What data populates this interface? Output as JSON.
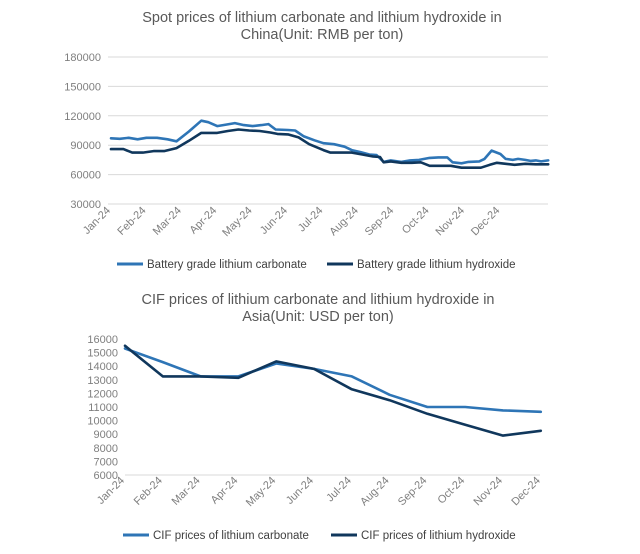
{
  "chart_data": [
    {
      "type": "line",
      "title": "Spot prices of lithium carbonate and lithium hydroxide in China(Unit: RMB per ton)",
      "title_lines": [
        "Spot prices of lithium carbonate and lithium hydroxide in",
        "China(Unit: RMB per ton)"
      ],
      "x_labels": [
        "Jan-24",
        "Feb-24",
        "Mar-24",
        "Apr-24",
        "May-24",
        "Jun-24",
        "Jul-24",
        "Aug-24",
        "Sep-24",
        "Oct-24",
        "Nov-24",
        "Dec-24"
      ],
      "ylim": [
        30000,
        180000
      ],
      "yticks": [
        30000,
        60000,
        90000,
        120000,
        150000,
        180000
      ],
      "grid": true,
      "legend_position": "bottom",
      "series": [
        {
          "name": "Battery grade lithium carbonate",
          "color": "#2e75b6",
          "points": [
            [
              0,
              97000
            ],
            [
              0.25,
              96500
            ],
            [
              0.5,
              97500
            ],
            [
              0.75,
              96000
            ],
            [
              1,
              97500
            ],
            [
              1.3,
              97500
            ],
            [
              1.6,
              96000
            ],
            [
              1.85,
              94000
            ],
            [
              2.2,
              104000
            ],
            [
              2.55,
              115000
            ],
            [
              2.75,
              113500
            ],
            [
              3,
              109500
            ],
            [
              3.25,
              111000
            ],
            [
              3.5,
              112500
            ],
            [
              3.75,
              110500
            ],
            [
              4,
              109500
            ],
            [
              4.25,
              110500
            ],
            [
              4.45,
              111500
            ],
            [
              4.65,
              106000
            ],
            [
              5,
              105500
            ],
            [
              5.2,
              105000
            ],
            [
              5.45,
              99000
            ],
            [
              5.75,
              95000
            ],
            [
              6,
              92000
            ],
            [
              6.3,
              91000
            ],
            [
              6.6,
              88500
            ],
            [
              6.8,
              85000
            ],
            [
              7.05,
              83000
            ],
            [
              7.3,
              80500
            ],
            [
              7.5,
              80000
            ],
            [
              7.7,
              73000
            ],
            [
              7.9,
              74500
            ],
            [
              8.2,
              73000
            ],
            [
              8.45,
              74500
            ],
            [
              8.7,
              75000
            ],
            [
              9,
              77000
            ],
            [
              9.25,
              77500
            ],
            [
              9.5,
              77500
            ],
            [
              9.65,
              72500
            ],
            [
              9.9,
              71500
            ],
            [
              10.1,
              73000
            ],
            [
              10.4,
              73500
            ],
            [
              10.55,
              76000
            ],
            [
              10.75,
              84500
            ],
            [
              11,
              81000
            ],
            [
              11.15,
              76000
            ],
            [
              11.35,
              75000
            ],
            [
              11.5,
              76000
            ],
            [
              11.7,
              75000
            ],
            [
              11.85,
              74000
            ],
            [
              12,
              74500
            ],
            [
              12.15,
              73500
            ],
            [
              12.35,
              74500
            ]
          ]
        },
        {
          "name": "Battery grade lithium hydroxide",
          "color": "#10375c",
          "points": [
            [
              0,
              86000
            ],
            [
              0.35,
              86000
            ],
            [
              0.6,
              82500
            ],
            [
              0.9,
              82500
            ],
            [
              1.2,
              84000
            ],
            [
              1.5,
              84000
            ],
            [
              1.85,
              87000
            ],
            [
              2.2,
              94500
            ],
            [
              2.55,
              102500
            ],
            [
              2.75,
              102500
            ],
            [
              3,
              102500
            ],
            [
              3.3,
              104500
            ],
            [
              3.6,
              106000
            ],
            [
              3.9,
              105000
            ],
            [
              4.2,
              104500
            ],
            [
              4.5,
              103000
            ],
            [
              4.7,
              101500
            ],
            [
              5,
              101000
            ],
            [
              5.3,
              98000
            ],
            [
              5.6,
              91000
            ],
            [
              6,
              85000
            ],
            [
              6.2,
              82500
            ],
            [
              6.5,
              82500
            ],
            [
              6.8,
              82500
            ],
            [
              7.1,
              80500
            ],
            [
              7.4,
              78500
            ],
            [
              7.6,
              78000
            ],
            [
              7.7,
              72500
            ],
            [
              7.9,
              73500
            ],
            [
              8.2,
              72000
            ],
            [
              8.5,
              72000
            ],
            [
              8.75,
              72500
            ],
            [
              9,
              69000
            ],
            [
              9.3,
              69000
            ],
            [
              9.6,
              69000
            ],
            [
              9.9,
              67000
            ],
            [
              10.2,
              67000
            ],
            [
              10.45,
              67000
            ],
            [
              10.7,
              70000
            ],
            [
              10.9,
              72000
            ],
            [
              11.15,
              71000
            ],
            [
              11.4,
              70000
            ],
            [
              11.7,
              71000
            ],
            [
              12,
              70500
            ],
            [
              12.35,
              70500
            ]
          ]
        }
      ]
    },
    {
      "type": "line",
      "title": "CIF prices of lithium carbonate and lithium hydroxide in Asia(Unit: USD per ton)",
      "title_lines": [
        "CIF prices of lithium carbonate and lithium hydroxide in",
        "Asia(Unit: USD per ton)"
      ],
      "x_labels": [
        "Jan-24",
        "Feb-24",
        "Mar-24",
        "Apr-24",
        "May-24",
        "Jun-24",
        "Jul-24",
        "Aug-24",
        "Sep-24",
        "Oct-24",
        "Nov-24",
        "Dec-24"
      ],
      "ylim": [
        6000,
        16000
      ],
      "yticks": [
        6000,
        7000,
        8000,
        9000,
        10000,
        11000,
        12000,
        13000,
        14000,
        15000,
        16000
      ],
      "grid": false,
      "legend_position": "bottom",
      "series": [
        {
          "name": "CIF prices of lithium carbonate",
          "color": "#2e75b6",
          "points": [
            [
              0,
              15300
            ],
            [
              1,
              14300
            ],
            [
              2,
              13250
            ],
            [
              3,
              13250
            ],
            [
              4,
              14200
            ],
            [
              5,
              13800
            ],
            [
              6,
              13250
            ],
            [
              7,
              11900
            ],
            [
              8,
              11000
            ],
            [
              9,
              11000
            ],
            [
              10,
              10750
            ],
            [
              11,
              10650
            ]
          ]
        },
        {
          "name": "CIF prices of lithium hydroxide",
          "color": "#10375c",
          "points": [
            [
              0,
              15500
            ],
            [
              1,
              13250
            ],
            [
              2,
              13250
            ],
            [
              3,
              13150
            ],
            [
              4,
              14350
            ],
            [
              5,
              13800
            ],
            [
              6,
              12300
            ],
            [
              7,
              11500
            ],
            [
              8,
              10500
            ],
            [
              9,
              9700
            ],
            [
              10,
              8900
            ],
            [
              11,
              9250
            ]
          ]
        }
      ]
    }
  ]
}
